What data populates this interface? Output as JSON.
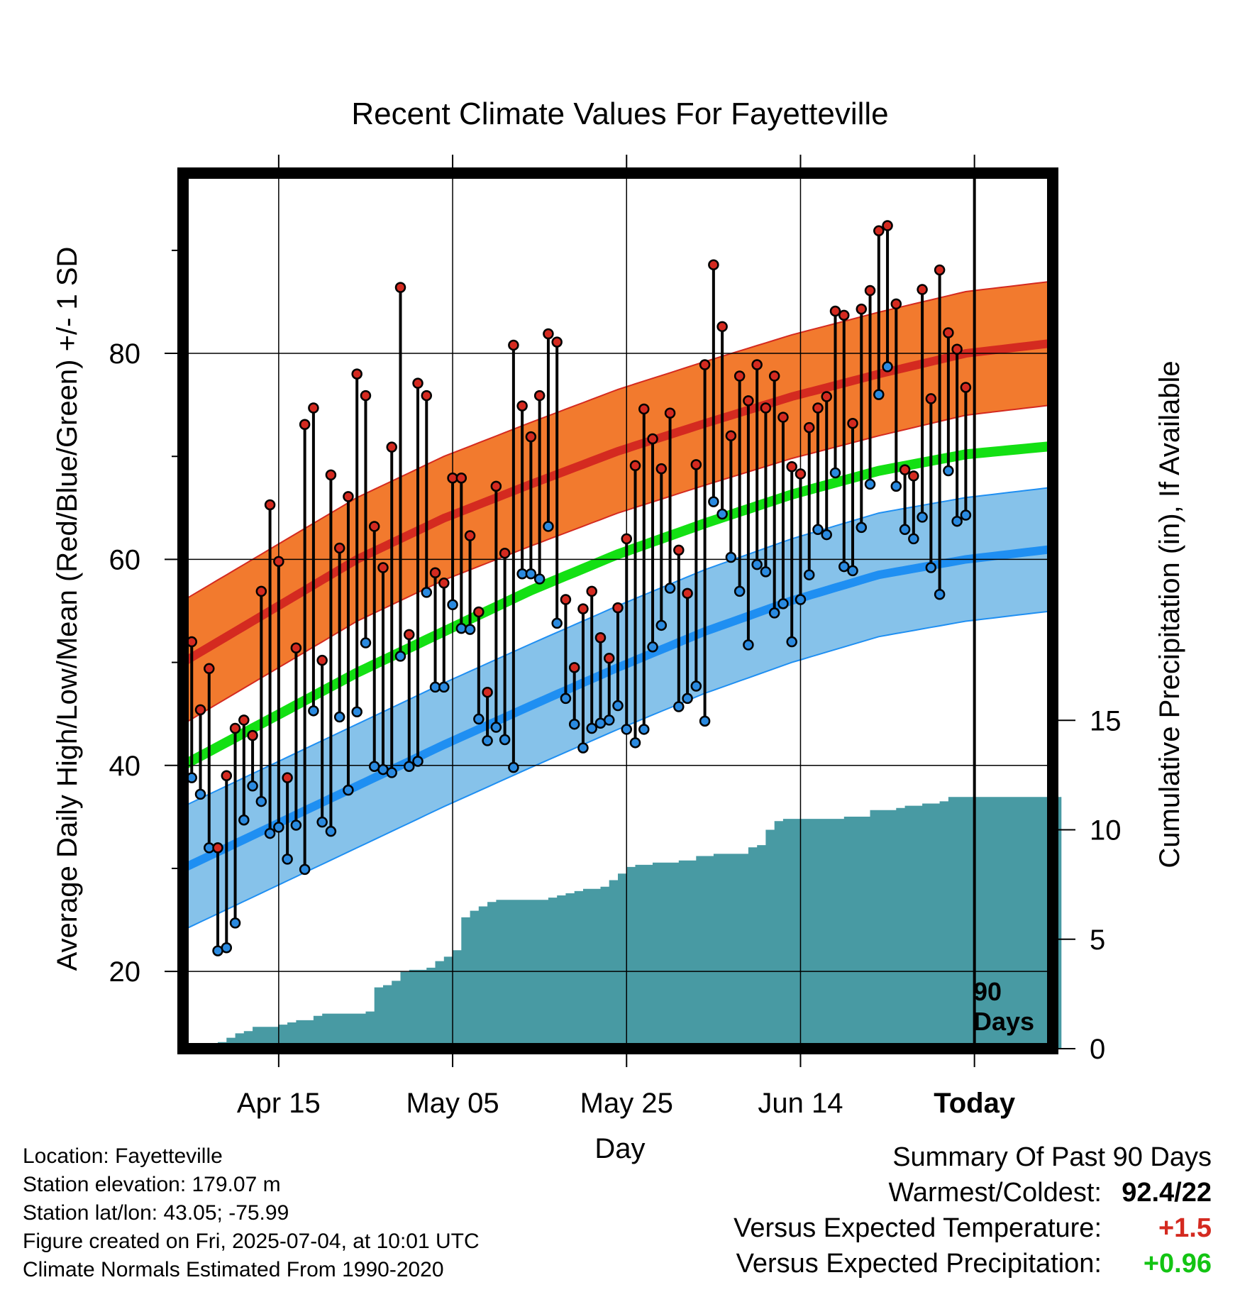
{
  "chart_data": {
    "type": "line",
    "title": "Recent Climate Values For Fayetteville",
    "xlabel": "Day",
    "ylabel": "Average Daily High/Low/Mean (Red/Blue/Green) +/- 1 SD",
    "y2label": "Cumulative Precipitation (in), If Available",
    "xlim": [
      -1,
      99
    ],
    "ylim": [
      12.5,
      97.5
    ],
    "y2lim": [
      0,
      40
    ],
    "x_ticks": [
      {
        "day": 10,
        "label": "Apr 15"
      },
      {
        "day": 30,
        "label": "May 05"
      },
      {
        "day": 50,
        "label": "May 25"
      },
      {
        "day": 70,
        "label": "Jun 14"
      },
      {
        "day": 90,
        "label": "Today"
      }
    ],
    "y_ticks": [
      20,
      40,
      60,
      80
    ],
    "y2_ticks": [
      0,
      5,
      10,
      15
    ],
    "today_marker": {
      "day": 90,
      "label_line1": "90",
      "label_line2": "Days"
    },
    "normals": {
      "days": [
        -1,
        9,
        19,
        29,
        39,
        49,
        59,
        69,
        79,
        89,
        99
      ],
      "high_mean": [
        50,
        55,
        60,
        64,
        67.3,
        70.5,
        73.2,
        75.8,
        78,
        80,
        81
      ],
      "high_sd": 6,
      "mean": [
        40,
        44.5,
        49,
        53,
        57,
        60.5,
        63.5,
        66.3,
        68.6,
        70.2,
        71
      ],
      "low_mean": [
        30,
        34,
        38,
        42,
        45.8,
        49.5,
        53,
        56,
        58.5,
        60,
        61
      ],
      "low_sd": 6
    },
    "daily_high": [
      52,
      45.4,
      49.4,
      32,
      39,
      43.6,
      44.4,
      42.9,
      56.9,
      65.3,
      59.8,
      38.8,
      51.4,
      73.1,
      74.7,
      50.2,
      68.2,
      61.1,
      66.1,
      78,
      75.9,
      63.2,
      59.2,
      70.9,
      86.4,
      52.7,
      77.1,
      75.9,
      58.7,
      57.7,
      67.9,
      67.9,
      62.3,
      54.9,
      47.1,
      67.1,
      60.6,
      80.8,
      74.9,
      71.9,
      75.9,
      81.9,
      81.1,
      56.1,
      49.5,
      55.2,
      56.9,
      52.4,
      50.4,
      55.3,
      62,
      69.1,
      74.6,
      71.7,
      68.8,
      74.2,
      60.9,
      56.7,
      69.2,
      78.9,
      88.6,
      82.6,
      72,
      77.8,
      75.4,
      78.9,
      74.7,
      77.8,
      73.8,
      69,
      68.3,
      72.8,
      74.7,
      75.8,
      84.1,
      83.7,
      73.2,
      84.3,
      86.1,
      91.9,
      92.4,
      84.8,
      68.7,
      68.1,
      86.2,
      75.6,
      88.1,
      82,
      80.4,
      76.7
    ],
    "daily_low": [
      38.8,
      37.2,
      32,
      22,
      22.3,
      24.7,
      34.7,
      38,
      36.5,
      33.4,
      34,
      30.9,
      34.2,
      29.9,
      45.3,
      34.5,
      33.6,
      44.7,
      37.6,
      45.2,
      51.9,
      39.9,
      39.6,
      39.3,
      50.6,
      39.9,
      40.4,
      56.8,
      47.6,
      47.6,
      55.6,
      53.3,
      53.2,
      44.5,
      42.4,
      43.7,
      42.5,
      39.8,
      58.6,
      58.6,
      58.1,
      63.2,
      53.8,
      46.5,
      44,
      41.7,
      43.6,
      44.1,
      44.4,
      45.8,
      43.5,
      42.2,
      43.5,
      51.5,
      53.6,
      57.2,
      45.7,
      46.5,
      47.7,
      44.3,
      65.6,
      64.4,
      60.2,
      56.9,
      51.7,
      59.5,
      58.8,
      54.8,
      55.7,
      52,
      56.1,
      58.5,
      62.9,
      62.4,
      68.4,
      59.3,
      58.9,
      63.1,
      67.3,
      76,
      78.7,
      67.1,
      62.9,
      62,
      64.1,
      59.2,
      56.6,
      68.6,
      63.7,
      64.3
    ],
    "precip_cumulative": [
      0,
      0,
      0.2,
      0.3,
      0.5,
      0.7,
      0.8,
      1,
      1,
      1,
      1.1,
      1.2,
      1.3,
      1.3,
      1.5,
      1.6,
      1.6,
      1.6,
      1.6,
      1.6,
      1.7,
      2.8,
      2.9,
      3.1,
      3.5,
      3.6,
      3.6,
      3.7,
      4,
      4.2,
      4.5,
      6,
      6.3,
      6.5,
      6.7,
      6.8,
      6.8,
      6.8,
      6.8,
      6.8,
      6.8,
      6.9,
      7,
      7.1,
      7.2,
      7.3,
      7.3,
      7.4,
      7.7,
      8,
      8.3,
      8.4,
      8.4,
      8.5,
      8.5,
      8.5,
      8.6,
      8.6,
      8.8,
      8.8,
      8.9,
      8.9,
      8.9,
      8.9,
      9.2,
      9.3,
      10,
      10.4,
      10.5,
      10.5,
      10.5,
      10.5,
      10.5,
      10.5,
      10.5,
      10.6,
      10.6,
      10.6,
      10.9,
      10.9,
      10.9,
      11,
      11.1,
      11.1,
      11.2,
      11.2,
      11.3,
      11.5,
      11.5,
      11.5,
      11.5,
      11.5,
      11.5,
      11.5,
      11.5,
      11.5,
      11.5,
      11.5,
      11.5,
      11.5
    ],
    "colors": {
      "high_band": "#f27a2e",
      "high_line": "#d42a20",
      "low_band": "#86c2ea",
      "low_line": "#1f8ff2",
      "mean_line": "#13e013",
      "precip": "#489aa3",
      "high_dot": "#d42a20",
      "low_dot": "#2a8ae0"
    }
  },
  "footer": {
    "location": "Location: Fayetteville",
    "elevation": "Station elevation: 179.07 m",
    "latlon": "Station lat/lon: 43.05; -75.99",
    "created": "Figure created on Fri, 2025-07-04, at 10:01 UTC",
    "normals": "Climate Normals Estimated From 1990-2020"
  },
  "summary": {
    "title": "Summary Of Past 90 Days",
    "warmest_label": "Warmest/Coldest:",
    "warmest_value": "92.4/22",
    "temp_label": "Versus Expected Temperature:",
    "temp_value": "+1.5",
    "precip_label": "Versus Expected Precipitation:",
    "precip_value": "+0.96"
  }
}
